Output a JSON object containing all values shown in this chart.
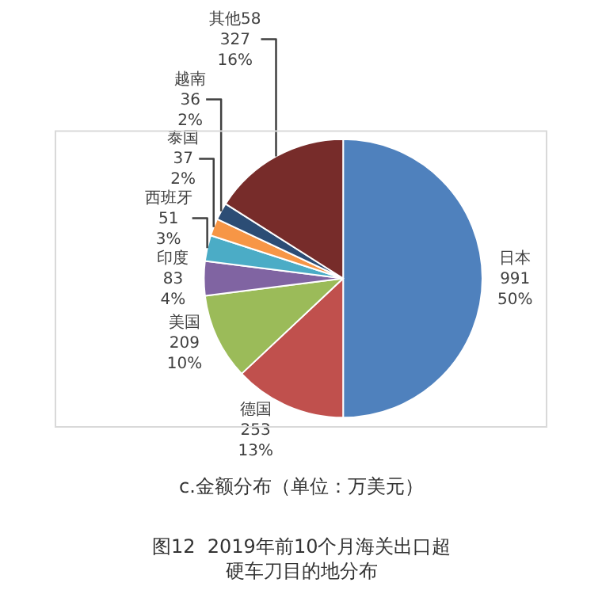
{
  "chart_data": {
    "type": "pie",
    "title": "图12  2019年前10个月海关出口超硬车刀目的地分布",
    "subtitle": "c.金额分布（单位：万美元）",
    "categories": [
      "日本",
      "德国",
      "美国",
      "印度",
      "西班牙",
      "泰国",
      "越南",
      "其他58"
    ],
    "values": [
      50,
      13,
      10,
      4,
      3,
      2,
      2,
      16
    ],
    "value_labels": [
      "991\n50%",
      "253\n13%",
      "209\n10%",
      "83\n4%",
      "51\n3%",
      "37\n2%",
      "36\n2%",
      "327\n16%"
    ],
    "colors": [
      "#4f81bd",
      "#c0504d",
      "#9bbb59",
      "#8064a2",
      "#4bacc6",
      "#f79646",
      "#2c4d75",
      "#772c2a"
    ],
    "legend": false
  }
}
